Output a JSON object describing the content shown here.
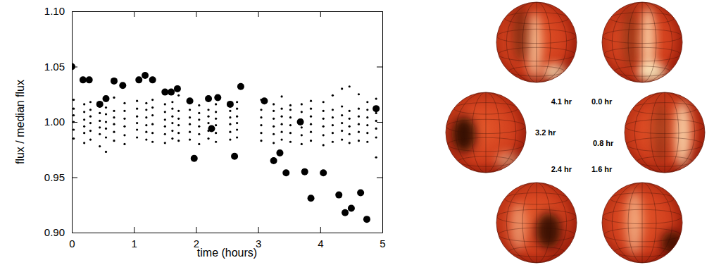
{
  "chart_data": {
    "type": "scatter",
    "xlabel": "time (hours)",
    "ylabel": "flux / median flux",
    "xlim": [
      0,
      5
    ],
    "xticks": [
      0,
      1,
      2,
      3,
      4,
      5
    ],
    "ylim": [
      0.9,
      1.1
    ],
    "yticks": [
      {
        "value": 0.9,
        "label": "0.90"
      },
      {
        "value": 0.95,
        "label": "0.95"
      },
      {
        "value": 1.0,
        "label": "1.00"
      },
      {
        "value": 1.05,
        "label": "1.05"
      },
      {
        "value": 1.1,
        "label": "1.10"
      }
    ],
    "grid": false,
    "series": [
      {
        "color": "#000000",
        "marker": "circle",
        "x": [
          0.03,
          0.03,
          0.03,
          0.03,
          0.03,
          0.03,
          0.2,
          0.2,
          0.2,
          0.2,
          0.2,
          0.2,
          0.3,
          0.3,
          0.3,
          0.3,
          0.3,
          0.3,
          0.45,
          0.45,
          0.45,
          0.45,
          0.45,
          0.45,
          0.55,
          0.55,
          0.55,
          0.55,
          0.55,
          0.55,
          0.68,
          0.68,
          0.68,
          0.68,
          0.68,
          0.68,
          0.85,
          0.85,
          0.85,
          0.85,
          0.85,
          0.85,
          1.05,
          1.05,
          1.05,
          1.05,
          1.05,
          1.05,
          1.2,
          1.2,
          1.2,
          1.2,
          1.2,
          1.2,
          1.3,
          1.3,
          1.3,
          1.3,
          1.3,
          1.3,
          1.5,
          1.5,
          1.5,
          1.5,
          1.5,
          1.5,
          1.62,
          1.62,
          1.62,
          1.62,
          1.62,
          1.62,
          1.72,
          1.72,
          1.72,
          1.72,
          1.72,
          1.72,
          1.9,
          1.9,
          1.9,
          1.9,
          1.9,
          1.9,
          2.05,
          2.05,
          2.05,
          2.05,
          2.05,
          2.05,
          2.2,
          2.2,
          2.2,
          2.2,
          2.2,
          2.2,
          2.32,
          2.32,
          2.32,
          2.32,
          2.32,
          2.32,
          2.55,
          2.55,
          2.55,
          2.55,
          2.55,
          2.55,
          2.66,
          2.66,
          2.66,
          2.66,
          2.66,
          2.66,
          3.05,
          3.05,
          3.05,
          3.05,
          3.05,
          3.05,
          3.25,
          3.25,
          3.25,
          3.25,
          3.25,
          3.25,
          3.38,
          3.38,
          3.38,
          3.38,
          3.38,
          3.38,
          3.52,
          3.52,
          3.52,
          3.52,
          3.52,
          3.52,
          3.7,
          3.7,
          3.7,
          3.7,
          3.7,
          3.7,
          3.85,
          3.85,
          3.85,
          3.85,
          3.85,
          3.85,
          4.05,
          4.05,
          4.05,
          4.05,
          4.05,
          4.05,
          4.2,
          4.2,
          4.2,
          4.2,
          4.2,
          4.2,
          4.35,
          4.35,
          4.35,
          4.35,
          4.35,
          4.35,
          4.47,
          4.47,
          4.47,
          4.47,
          4.47,
          4.47,
          4.62,
          4.62,
          4.62,
          4.62,
          4.62,
          4.62,
          4.76,
          4.76,
          4.76,
          4.76,
          4.76,
          4.76,
          4.9,
          4.9,
          4.9,
          4.9,
          4.9,
          4.9
        ],
        "values": [
          0.985,
          0.993,
          1.0,
          1.006,
          1.012,
          1.02,
          0.981,
          0.99,
          0.996,
          1.002,
          1.009,
          1.016,
          0.984,
          0.992,
          0.999,
          1.005,
          1.011,
          1.018,
          0.978,
          0.989,
          0.995,
          1.001,
          1.008,
          1.014,
          0.973,
          0.986,
          0.994,
          1.0,
          1.007,
          1.013,
          0.983,
          0.991,
          0.998,
          1.004,
          1.01,
          1.022,
          0.98,
          0.988,
          0.996,
          1.003,
          1.01,
          1.017,
          0.986,
          0.993,
          0.999,
          1.005,
          1.012,
          1.019,
          0.984,
          0.991,
          0.997,
          1.004,
          1.011,
          1.017,
          0.982,
          0.99,
          0.998,
          1.006,
          1.013,
          1.02,
          0.981,
          0.989,
          0.996,
          1.002,
          1.009,
          1.016,
          0.985,
          0.992,
          0.999,
          1.005,
          1.012,
          1.018,
          0.983,
          0.99,
          0.997,
          1.003,
          1.01,
          1.024,
          0.984,
          0.991,
          0.998,
          1.004,
          1.011,
          1.017,
          0.98,
          0.989,
          0.996,
          1.002,
          1.008,
          1.015,
          0.985,
          0.992,
          0.999,
          1.005,
          1.011,
          1.019,
          0.982,
          0.99,
          0.997,
          1.003,
          1.009,
          1.016,
          0.984,
          0.991,
          0.998,
          1.004,
          1.01,
          1.017,
          0.986,
          0.993,
          0.999,
          1.005,
          1.012,
          1.018,
          0.983,
          0.99,
          0.997,
          1.004,
          1.011,
          1.02,
          0.981,
          0.989,
          0.996,
          1.003,
          1.01,
          1.016,
          0.984,
          0.991,
          0.998,
          1.005,
          1.012,
          1.023,
          0.982,
          0.99,
          0.997,
          1.004,
          1.011,
          1.015,
          0.98,
          0.988,
          0.995,
          1.002,
          1.009,
          1.016,
          0.983,
          0.991,
          0.998,
          1.005,
          1.012,
          1.019,
          0.979,
          0.988,
          0.996,
          1.003,
          1.01,
          1.018,
          0.982,
          0.99,
          0.997,
          1.004,
          1.011,
          1.024,
          0.984,
          0.992,
          0.999,
          1.006,
          1.014,
          1.03,
          0.981,
          0.989,
          0.996,
          1.003,
          1.01,
          1.032,
          0.983,
          0.991,
          0.998,
          1.005,
          1.012,
          1.025,
          0.982,
          0.99,
          0.997,
          1.004,
          1.011,
          1.018,
          0.968,
          0.986,
          0.994,
          1.001,
          1.008,
          1.021
        ]
      },
      {
        "color": "#000000",
        "marker": "circle",
        "x": [
          0.0,
          0.18,
          0.28,
          0.45,
          0.55,
          0.68,
          0.82,
          1.08,
          1.18,
          1.3,
          1.5,
          1.6,
          1.7,
          1.9,
          1.97,
          2.2,
          2.25,
          2.35,
          2.55,
          2.62,
          2.72,
          3.1,
          3.25,
          3.35,
          3.45,
          3.68,
          3.75,
          3.85,
          4.05,
          4.3,
          4.4,
          4.5,
          4.65,
          4.75,
          4.9
        ],
        "values": [
          1.05,
          1.038,
          1.038,
          1.016,
          1.021,
          1.037,
          1.033,
          1.038,
          1.042,
          1.038,
          1.027,
          1.027,
          1.03,
          1.019,
          0.967,
          1.021,
          0.994,
          1.022,
          1.016,
          0.969,
          1.032,
          1.019,
          0.965,
          0.972,
          0.954,
          1.0,
          0.955,
          0.931,
          0.954,
          0.934,
          0.918,
          0.922,
          0.936,
          0.912,
          1.012
        ]
      }
    ]
  },
  "globes": {
    "labels": [
      "0.0 hr",
      "0.8 hr",
      "1.6 hr",
      "2.4 hr",
      "3.2 hr",
      "4.1 hr"
    ]
  }
}
